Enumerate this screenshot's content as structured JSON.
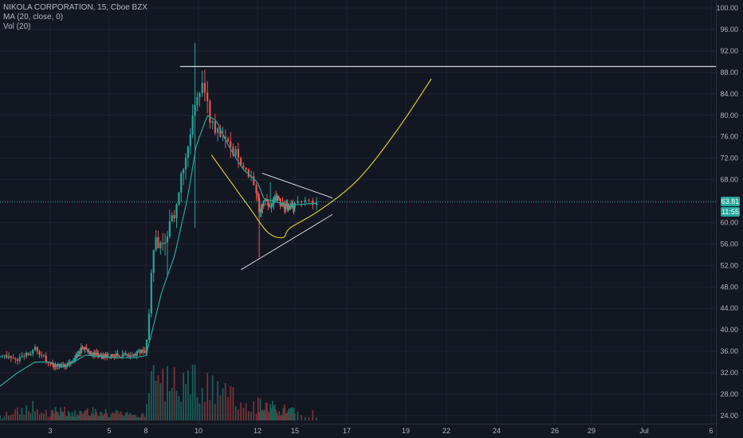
{
  "legend": {
    "line1": "NIKOLA CORPORATION, 15, Cboe BZX",
    "line2": "MA (20, close, 0)",
    "line3": "Vol (20)"
  },
  "price_badge": {
    "value": "63.81",
    "countdown": "11:55",
    "color": "#26a69a"
  },
  "colors": {
    "background": "#131722",
    "grid": "#1e2330",
    "up": "#26a69a",
    "down": "#ef5350",
    "ma": "#26a69a",
    "volume_up": "#1b5e58",
    "volume_down": "#7a2f35",
    "curve": "#d4c72a",
    "drawing": "#d1d4dc",
    "axis_text": "#b2b5be"
  },
  "chart_data": {
    "type": "candlestick",
    "symbol": "NIKOLA CORPORATION",
    "interval": "15",
    "exchange": "Cboe BZX",
    "indicators": [
      "MA (20, close, 0)",
      "Vol (20)"
    ],
    "last_price": 63.81,
    "y_ticks": [
      100.0,
      96.0,
      92.0,
      88.0,
      84.0,
      80.0,
      76.0,
      72.0,
      68.0,
      64.0,
      60.0,
      56.0,
      52.0,
      48.0,
      44.0,
      40.0,
      36.0,
      32.0,
      28.0,
      24.0
    ],
    "y_tick_labels": [
      "100.00",
      "96.00",
      "92.00",
      "88.00",
      "84.00",
      "80.00",
      "76.00",
      "72.00",
      "68.00",
      "64.00",
      "60.00",
      "56.00",
      "52.00",
      "48.00",
      "44.00",
      "40.00",
      "36.00",
      "32.00",
      "28.00",
      "24.00"
    ],
    "x_tick_labels": [
      "3",
      "5",
      "8",
      "10",
      "12",
      "15",
      "17",
      "19",
      "22",
      "24",
      "26",
      "29",
      "Jul",
      "6"
    ],
    "x_tick_pos": [
      1,
      3,
      5,
      6,
      7,
      8,
      9,
      10,
      11,
      12,
      13,
      14,
      15,
      16
    ],
    "ylim": [
      22.5,
      101.5
    ],
    "session": {
      "open_pos": 8.0,
      "close_pos": 8.25
    },
    "session_anchors": [
      {
        "pos": 0.0,
        "price": 35.0
      },
      {
        "pos": 0.4,
        "price": 34.5
      },
      {
        "pos": 0.7,
        "price": 36.5
      },
      {
        "pos": 1.0,
        "price": 33.5
      },
      {
        "pos": 1.4,
        "price": 33.0
      },
      {
        "pos": 1.8,
        "price": 34.5
      },
      {
        "pos": 2.1,
        "price": 36.8
      },
      {
        "pos": 2.4,
        "price": 35.5
      },
      {
        "pos": 2.8,
        "price": 35.0
      },
      {
        "pos": 3.3,
        "price": 35.2
      },
      {
        "pos": 3.7,
        "price": 35.5
      },
      {
        "pos": 4.0,
        "price": 36.2
      },
      {
        "pos": 4.05,
        "price": 42.0
      },
      {
        "pos": 4.15,
        "price": 56.0
      },
      {
        "pos": 4.35,
        "price": 57.0
      },
      {
        "pos": 4.55,
        "price": 62.0
      },
      {
        "pos": 4.75,
        "price": 73.0
      },
      {
        "pos": 4.9,
        "price": 80.0
      },
      {
        "pos": 5.0,
        "price": 84.0
      },
      {
        "pos": 5.1,
        "price": 85.5
      },
      {
        "pos": 5.18,
        "price": 80.0
      },
      {
        "pos": 5.3,
        "price": 77.0
      },
      {
        "pos": 5.5,
        "price": 75.0
      },
      {
        "pos": 5.7,
        "price": 71.5
      },
      {
        "pos": 5.85,
        "price": 69.0
      },
      {
        "pos": 6.0,
        "price": 65.5
      },
      {
        "pos": 6.05,
        "price": 62.0
      },
      {
        "pos": 6.25,
        "price": 64.0
      },
      {
        "pos": 6.5,
        "price": 63.5
      },
      {
        "pos": 6.75,
        "price": 64.5
      },
      {
        "pos": 7.0,
        "price": 63.0
      },
      {
        "pos": 7.3,
        "price": 63.3
      },
      {
        "pos": 7.5,
        "price": 62.5
      },
      {
        "pos": 7.7,
        "price": 63.2
      },
      {
        "pos": 7.85,
        "price": 62.7
      },
      {
        "pos": 8.0,
        "price": 63.5
      },
      {
        "pos": 8.25,
        "price": 63.81
      }
    ],
    "ma_anchors": [
      {
        "pos": 0.0,
        "price": 29.5
      },
      {
        "pos": 0.35,
        "price": 32.0
      },
      {
        "pos": 0.7,
        "price": 34.0
      },
      {
        "pos": 1.0,
        "price": 34.0
      },
      {
        "pos": 1.4,
        "price": 33.0
      },
      {
        "pos": 1.8,
        "price": 34.0
      },
      {
        "pos": 2.2,
        "price": 35.3
      },
      {
        "pos": 2.7,
        "price": 35.0
      },
      {
        "pos": 3.2,
        "price": 34.8
      },
      {
        "pos": 3.7,
        "price": 34.8
      },
      {
        "pos": 4.0,
        "price": 35.2
      },
      {
        "pos": 4.1,
        "price": 39.0
      },
      {
        "pos": 4.3,
        "price": 47.0
      },
      {
        "pos": 4.55,
        "price": 54.0
      },
      {
        "pos": 4.8,
        "price": 65.0
      },
      {
        "pos": 4.95,
        "price": 74.0
      },
      {
        "pos": 5.15,
        "price": 80.0
      },
      {
        "pos": 5.3,
        "price": 79.0
      },
      {
        "pos": 5.5,
        "price": 74.5
      },
      {
        "pos": 5.75,
        "price": 70.0
      },
      {
        "pos": 6.0,
        "price": 67.5
      },
      {
        "pos": 6.25,
        "price": 64.5
      },
      {
        "pos": 6.6,
        "price": 64.0
      },
      {
        "pos": 7.0,
        "price": 63.5
      },
      {
        "pos": 7.5,
        "price": 63.2
      },
      {
        "pos": 8.0,
        "price": 63.3
      },
      {
        "pos": 8.25,
        "price": 63.6
      }
    ],
    "volatility_profile": [
      {
        "pos": 0.0,
        "v": 0.55
      },
      {
        "pos": 4.0,
        "v": 0.55
      },
      {
        "pos": 4.1,
        "v": 1.5
      },
      {
        "pos": 5.2,
        "v": 1.8
      },
      {
        "pos": 6.0,
        "v": 1.1
      },
      {
        "pos": 6.5,
        "v": 0.85
      },
      {
        "pos": 8.25,
        "v": 0.7
      }
    ],
    "spikes": [
      {
        "pos": 4.95,
        "high": 93.5
      },
      {
        "pos": 4.93,
        "low": 59.0
      },
      {
        "pos": 6.05,
        "low": 53.5
      },
      {
        "pos": 5.12,
        "high": 88.5
      },
      {
        "pos": 6.5,
        "high": 67.5
      },
      {
        "pos": 4.4,
        "low": 50.0
      }
    ],
    "volume_profile": [
      {
        "pos": 0.0,
        "v": 0.1
      },
      {
        "pos": 0.7,
        "v": 0.35
      },
      {
        "pos": 1.0,
        "v": 0.22
      },
      {
        "pos": 2.0,
        "v": 0.25
      },
      {
        "pos": 4.0,
        "v": 0.12
      },
      {
        "pos": 4.05,
        "v": 0.9
      },
      {
        "pos": 4.9,
        "v": 1.0
      },
      {
        "pos": 5.2,
        "v": 0.75
      },
      {
        "pos": 6.0,
        "v": 0.45
      },
      {
        "pos": 7.0,
        "v": 0.28
      },
      {
        "pos": 8.25,
        "v": 0.18
      }
    ],
    "drawings": {
      "horizontal_line": {
        "price": 89.1,
        "from_pos": 4.65,
        "to_pos": 16.0
      },
      "triangle_upper": {
        "from": {
          "pos": 6.18,
          "price": 69.2
        },
        "to": {
          "pos": 8.5,
          "price": 64.6
        }
      },
      "triangle_lower": {
        "from": {
          "pos": 5.72,
          "price": 51.2
        },
        "to": {
          "pos": 8.5,
          "price": 61.5
        }
      },
      "cup_curve": [
        {
          "pos": 5.22,
          "price": 72.6
        },
        {
          "pos": 5.85,
          "price": 63.0
        },
        {
          "pos": 6.4,
          "price": 58.2
        },
        {
          "pos": 7.0,
          "price": 57.2
        },
        {
          "pos": 7.6,
          "price": 59.0
        },
        {
          "pos": 8.3,
          "price": 62.3
        },
        {
          "pos": 8.9,
          "price": 68.0
        },
        {
          "pos": 9.5,
          "price": 77.0
        },
        {
          "pos": 10.05,
          "price": 86.8
        }
      ]
    }
  }
}
